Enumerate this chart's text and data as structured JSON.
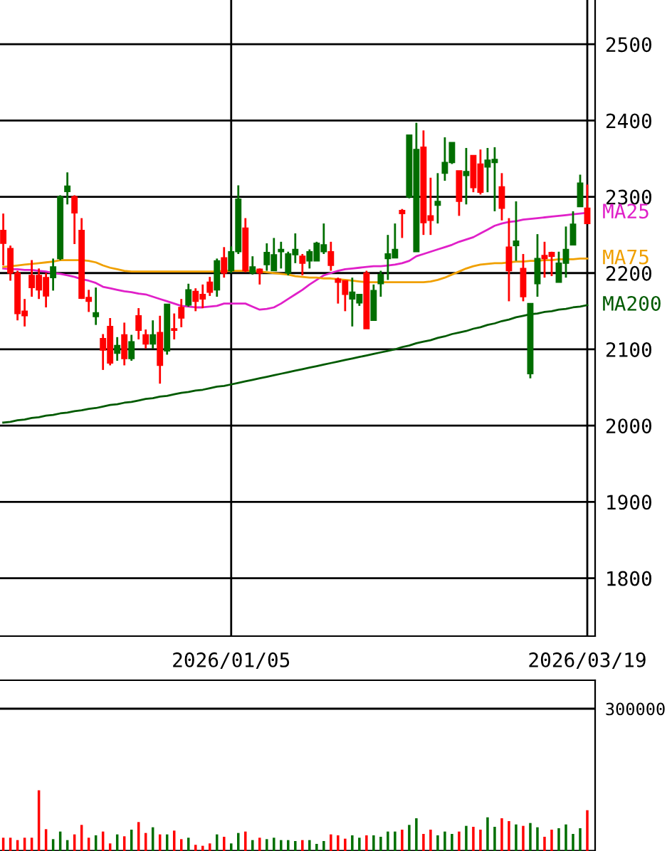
{
  "chart_data": [
    {
      "type": "candlestick",
      "categories": [
        null,
        null,
        null,
        null,
        null,
        null,
        null,
        null,
        null,
        null,
        null,
        null,
        null,
        null,
        null,
        null,
        null,
        null,
        null,
        null,
        null,
        null,
        null,
        null,
        null,
        null,
        null,
        null,
        null,
        null,
        null,
        null,
        "2026/01/05",
        null,
        null,
        null,
        null,
        null,
        null,
        null,
        null,
        null,
        null,
        null,
        null,
        null,
        null,
        null,
        null,
        null,
        null,
        null,
        null,
        null,
        null,
        null,
        null,
        null,
        null,
        null,
        null,
        null,
        null,
        null,
        null,
        null,
        null,
        null,
        null,
        null,
        null,
        null,
        null,
        null,
        null,
        null,
        null,
        null,
        null,
        null,
        null,
        null,
        "2026/03/19"
      ],
      "ohlc": [
        [
          2256,
          2278,
          2210,
          2239
        ],
        [
          2232,
          2236,
          2190,
          2200
        ],
        [
          2200,
          2203,
          2138,
          2147
        ],
        [
          2150,
          2166,
          2130,
          2144
        ],
        [
          2197,
          2217,
          2169,
          2181
        ],
        [
          2197,
          2206,
          2166,
          2178
        ],
        [
          2194,
          2200,
          2155,
          2170
        ],
        [
          2194,
          2219,
          2177,
          2208
        ],
        [
          2219,
          2302,
          2217,
          2300
        ],
        [
          2307,
          2332,
          2290,
          2314
        ],
        [
          2300,
          2302,
          2238,
          2279
        ],
        [
          2256,
          2272,
          2166,
          2167
        ],
        [
          2168,
          2178,
          2149,
          2163
        ],
        [
          2143,
          2181,
          2132,
          2148
        ],
        [
          2114,
          2120,
          2073,
          2099
        ],
        [
          2130,
          2141,
          2079,
          2082
        ],
        [
          2095,
          2116,
          2085,
          2105
        ],
        [
          2119,
          2135,
          2079,
          2088
        ],
        [
          2088,
          2119,
          2085,
          2110
        ],
        [
          2144,
          2154,
          2113,
          2125
        ],
        [
          2119,
          2126,
          2101,
          2107
        ],
        [
          2107,
          2138,
          2101,
          2119
        ],
        [
          2122,
          2144,
          2055,
          2079
        ],
        [
          2098,
          2159,
          2093,
          2159
        ],
        [
          2127,
          2147,
          2113,
          2125
        ],
        [
          2155,
          2166,
          2129,
          2141
        ],
        [
          2158,
          2186,
          2156,
          2178
        ],
        [
          2176,
          2180,
          2150,
          2163
        ],
        [
          2172,
          2185,
          2154,
          2166
        ],
        [
          2188,
          2195,
          2170,
          2175
        ],
        [
          2178,
          2219,
          2169,
          2216
        ],
        [
          2220,
          2234,
          2194,
          2200
        ],
        [
          2203,
          2235,
          2200,
          2228
        ],
        [
          2228,
          2315,
          2225,
          2297
        ],
        [
          2259,
          2272,
          2201,
          2203
        ],
        [
          2200,
          2222,
          2198,
          2208
        ],
        [
          2205,
          2206,
          2185,
          2200
        ],
        [
          2211,
          2239,
          2203,
          2227
        ],
        [
          2203,
          2246,
          2203,
          2224
        ],
        [
          2228,
          2241,
          2206,
          2231
        ],
        [
          2200,
          2228,
          2197,
          2225
        ],
        [
          2224,
          2252,
          2213,
          2231
        ],
        [
          2222,
          2225,
          2197,
          2213
        ],
        [
          2216,
          2231,
          2206,
          2228
        ],
        [
          2216,
          2241,
          2216,
          2239
        ],
        [
          2228,
          2265,
          2225,
          2237
        ],
        [
          2228,
          2241,
          2203,
          2210
        ],
        [
          2192,
          2194,
          2160,
          2188
        ],
        [
          2190,
          2190,
          2150,
          2172
        ],
        [
          2166,
          2194,
          2130,
          2175
        ],
        [
          2161,
          2172,
          2157,
          2172
        ],
        [
          2200,
          2203,
          2127,
          2127
        ],
        [
          2138,
          2185,
          2138,
          2177
        ],
        [
          2186,
          2203,
          2169,
          2198
        ],
        [
          2219,
          2250,
          2191,
          2225
        ],
        [
          2220,
          2265,
          2220,
          2231
        ],
        [
          2282,
          2284,
          2246,
          2278
        ],
        [
          2300,
          2381,
          2298,
          2381
        ],
        [
          2228,
          2397,
          2228,
          2362
        ],
        [
          2365,
          2387,
          2250,
          2266
        ],
        [
          2275,
          2325,
          2250,
          2269
        ],
        [
          2289,
          2331,
          2265,
          2294
        ],
        [
          2331,
          2378,
          2321,
          2345
        ],
        [
          2345,
          2371,
          2343,
          2371
        ],
        [
          2334,
          2334,
          2275,
          2294
        ],
        [
          2328,
          2364,
          2290,
          2333
        ],
        [
          2354,
          2354,
          2306,
          2312
        ],
        [
          2343,
          2362,
          2303,
          2306
        ],
        [
          2339,
          2364,
          2306,
          2348
        ],
        [
          2345,
          2365,
          2281,
          2349
        ],
        [
          2313,
          2331,
          2269,
          2285
        ],
        [
          2234,
          2272,
          2163,
          2203
        ],
        [
          2236,
          2294,
          2216,
          2242
        ],
        [
          2206,
          2225,
          2163,
          2169
        ],
        [
          2068,
          2160,
          2062,
          2160
        ],
        [
          2186,
          2251,
          2169,
          2219
        ],
        [
          2223,
          2241,
          2194,
          2219
        ],
        [
          2227,
          2228,
          2196,
          2222
        ],
        [
          2188,
          2228,
          2188,
          2213
        ],
        [
          2213,
          2261,
          2194,
          2231
        ],
        [
          2237,
          2281,
          2237,
          2264
        ],
        [
          2287,
          2329,
          2287,
          2318
        ],
        [
          2285,
          2316,
          2265,
          2265
        ]
      ],
      "colors": [
        "#ff0000",
        "#ff0000",
        "#ff0000",
        "#ff0000",
        "#ff0000",
        "#ff0000",
        "#ff0000",
        "#006e00",
        "#006e00",
        "#006e00",
        "#ff0000",
        "#ff0000",
        "#ff0000",
        "#006e00",
        "#ff0000",
        "#ff0000",
        "#006e00",
        "#ff0000",
        "#006e00",
        "#ff0000",
        "#ff0000",
        "#006e00",
        "#ff0000",
        "#006e00",
        "#ff0000",
        "#ff0000",
        "#006e00",
        "#ff0000",
        "#ff0000",
        "#ff0000",
        "#006e00",
        "#ff0000",
        "#006e00",
        "#006e00",
        "#ff0000",
        "#006e00",
        "#ff0000",
        "#006e00",
        "#006e00",
        "#006e00",
        "#006e00",
        "#006e00",
        "#ff0000",
        "#006e00",
        "#006e00",
        "#006e00",
        "#ff0000",
        "#ff0000",
        "#ff0000",
        "#006e00",
        "#006e00",
        "#ff0000",
        "#006e00",
        "#006e00",
        "#006e00",
        "#006e00",
        "#ff0000",
        "#006e00",
        "#006e00",
        "#ff0000",
        "#ff0000",
        "#006e00",
        "#006e00",
        "#006e00",
        "#ff0000",
        "#006e00",
        "#ff0000",
        "#ff0000",
        "#006e00",
        "#006e00",
        "#ff0000",
        "#ff0000",
        "#006e00",
        "#ff0000",
        "#006e00",
        "#006e00",
        "#ff0000",
        "#ff0000",
        "#006e00",
        "#006e00",
        "#006e00",
        "#006e00",
        "#ff0000"
      ],
      "series": [
        {
          "type": "line",
          "name": "MA25",
          "color": "#e020c8",
          "values": [
            2206,
            2205,
            2205,
            2204,
            2204,
            2203,
            2202,
            2200,
            2199,
            2197,
            2195,
            2192,
            2190,
            2187,
            2182,
            2180,
            2178,
            2176,
            2175,
            2173,
            2172,
            2169,
            2166,
            2163,
            2160,
            2157,
            2156,
            2155,
            2155,
            2156,
            2157,
            2160,
            2160,
            2160,
            2160,
            2156,
            2152,
            2153,
            2155,
            2160,
            2166,
            2172,
            2178,
            2185,
            2191,
            2197,
            2200,
            2203,
            2205,
            2206,
            2207,
            2208,
            2209,
            2209,
            2210,
            2211,
            2213,
            2216,
            2222,
            2225,
            2228,
            2231,
            2234,
            2237,
            2241,
            2244,
            2247,
            2252,
            2257,
            2262,
            2265,
            2267,
            2268,
            2270,
            2271,
            2272,
            2273,
            2274,
            2275,
            2276,
            2277,
            2278,
            2279
          ]
        },
        {
          "type": "line",
          "name": "MA75",
          "color": "#f0a000",
          "values": [
            2208,
            2209,
            2210,
            2211,
            2212,
            2213,
            2214,
            2215,
            2217,
            2217,
            2217,
            2217,
            2216,
            2214,
            2210,
            2207,
            2205,
            2203,
            2202,
            2202,
            2202,
            2202,
            2202,
            2202,
            2202,
            2202,
            2202,
            2202,
            2202,
            2202,
            2202,
            2203,
            2203,
            2203,
            2203,
            2203,
            2202,
            2201,
            2200,
            2199,
            2198,
            2196,
            2195,
            2194,
            2194,
            2193,
            2193,
            2192,
            2191,
            2190,
            2189,
            2188,
            2188,
            2188,
            2188,
            2188,
            2188,
            2188,
            2188,
            2188,
            2189,
            2191,
            2194,
            2198,
            2202,
            2206,
            2209,
            2211,
            2212,
            2213,
            2213,
            2214,
            2215,
            2215,
            2216,
            2216,
            2217,
            2217,
            2218,
            2218,
            2218,
            2219,
            2219
          ]
        },
        {
          "type": "line",
          "name": "MA200",
          "color": "#005a00",
          "values": [
            2004,
            2005,
            2007,
            2008,
            2010,
            2011,
            2013,
            2014,
            2016,
            2017,
            2019,
            2020,
            2022,
            2023,
            2025,
            2027,
            2028,
            2030,
            2031,
            2033,
            2035,
            2036,
            2038,
            2039,
            2041,
            2043,
            2044,
            2046,
            2047,
            2049,
            2051,
            2052,
            2054,
            2056,
            2058,
            2060,
            2062,
            2064,
            2066,
            2068,
            2070,
            2072,
            2074,
            2076,
            2078,
            2080,
            2082,
            2084,
            2086,
            2088,
            2090,
            2092,
            2094,
            2096,
            2098,
            2100,
            2103,
            2105,
            2108,
            2110,
            2112,
            2115,
            2117,
            2120,
            2122,
            2124,
            2127,
            2129,
            2132,
            2134,
            2137,
            2139,
            2142,
            2144,
            2146,
            2147,
            2149,
            2150,
            2152,
            2153,
            2155,
            2156,
            2158
          ]
        }
      ],
      "ylim": [
        1724,
        2558
      ],
      "yticks": [
        1800,
        1900,
        2000,
        2100,
        2200,
        2300,
        2400,
        2500
      ],
      "grid": true
    },
    {
      "type": "bar",
      "categories": [
        null,
        null,
        null,
        null,
        null,
        null,
        null,
        null,
        null,
        null,
        null,
        null,
        null,
        null,
        null,
        null,
        null,
        null,
        null,
        null,
        null,
        null,
        null,
        null,
        null,
        null,
        null,
        null,
        null,
        null,
        null,
        null,
        null,
        null,
        null,
        null,
        null,
        null,
        null,
        null,
        null,
        null,
        null,
        null,
        null,
        null,
        null,
        null,
        null,
        null,
        null,
        null,
        null,
        null,
        null,
        null,
        null,
        null,
        null,
        null,
        null,
        null,
        null,
        null,
        null,
        null,
        null,
        null,
        null,
        null,
        null,
        null,
        null,
        null,
        null,
        null,
        null,
        null,
        null,
        null,
        null,
        null,
        null
      ],
      "values": [
        28000,
        28000,
        23000,
        28000,
        28000,
        128000,
        46000,
        25000,
        41000,
        23000,
        35000,
        55000,
        28000,
        33000,
        41000,
        16000,
        35000,
        31000,
        45000,
        61000,
        38000,
        50000,
        35000,
        35000,
        43000,
        25000,
        28000,
        13000,
        11000,
        16000,
        35000,
        30000,
        16000,
        38000,
        41000,
        23000,
        28000,
        25000,
        28000,
        23000,
        23000,
        21000,
        23000,
        23000,
        15000,
        21000,
        35000,
        33000,
        26000,
        33000,
        28000,
        33000,
        33000,
        30000,
        41000,
        41000,
        45000,
        55000,
        69000,
        36000,
        45000,
        33000,
        41000,
        36000,
        41000,
        53000,
        51000,
        45000,
        71000,
        51000,
        69000,
        63000,
        56000,
        53000,
        59000,
        50000,
        30000,
        45000,
        48000,
        56000,
        36000,
        48000,
        86000
      ],
      "colors": [
        "#ff0000",
        "#ff0000",
        "#ff0000",
        "#ff0000",
        "#ff0000",
        "#ff0000",
        "#ff0000",
        "#006e00",
        "#006e00",
        "#006e00",
        "#ff0000",
        "#ff0000",
        "#ff0000",
        "#006e00",
        "#ff0000",
        "#ff0000",
        "#006e00",
        "#ff0000",
        "#006e00",
        "#ff0000",
        "#ff0000",
        "#006e00",
        "#ff0000",
        "#006e00",
        "#ff0000",
        "#ff0000",
        "#006e00",
        "#ff0000",
        "#ff0000",
        "#ff0000",
        "#006e00",
        "#ff0000",
        "#006e00",
        "#006e00",
        "#ff0000",
        "#006e00",
        "#ff0000",
        "#006e00",
        "#006e00",
        "#006e00",
        "#006e00",
        "#006e00",
        "#ff0000",
        "#006e00",
        "#006e00",
        "#006e00",
        "#ff0000",
        "#ff0000",
        "#ff0000",
        "#006e00",
        "#006e00",
        "#ff0000",
        "#006e00",
        "#006e00",
        "#006e00",
        "#006e00",
        "#ff0000",
        "#006e00",
        "#006e00",
        "#ff0000",
        "#ff0000",
        "#006e00",
        "#006e00",
        "#006e00",
        "#ff0000",
        "#006e00",
        "#ff0000",
        "#ff0000",
        "#006e00",
        "#006e00",
        "#ff0000",
        "#ff0000",
        "#006e00",
        "#ff0000",
        "#006e00",
        "#006e00",
        "#ff0000",
        "#ff0000",
        "#006e00",
        "#006e00",
        "#006e00",
        "#006e00",
        "#ff0000"
      ],
      "ylim": [
        0,
        360000
      ],
      "yticks": [
        {
          "value": 0,
          "label": null
        },
        300000
      ],
      "grid": "y",
      "tick_labels": "y"
    }
  ]
}
